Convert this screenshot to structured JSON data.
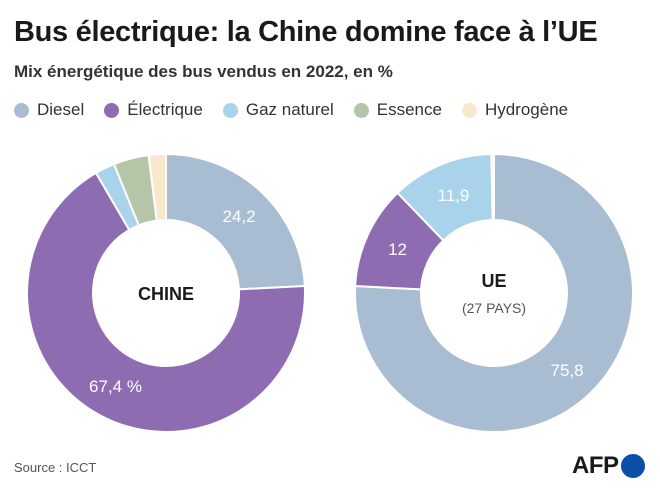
{
  "title": "Bus électrique: la Chine domine face à l’UE",
  "subtitle": "Mix énergétique des bus vendus en 2022, en %",
  "legend": [
    {
      "label": "Diesel",
      "color": "#a9bdd2"
    },
    {
      "label": "Électrique",
      "color": "#8e6cb2"
    },
    {
      "label": "Gaz naturel",
      "color": "#a8d3ea"
    },
    {
      "label": "Essence",
      "color": "#b5c6a8"
    },
    {
      "label": "Hydrogène",
      "color": "#f8e8cd"
    }
  ],
  "chart_data": [
    {
      "type": "pie",
      "name": "CHINE",
      "center_label": "CHINE",
      "center_sublabel": "",
      "categories": [
        "Diesel",
        "Électrique",
        "Gaz naturel",
        "Essence",
        "Hydrogène"
      ],
      "values": [
        24.2,
        67.4,
        2.3,
        4.1,
        2.0
      ],
      "labels": [
        "24,2",
        "67,4 %",
        "",
        "",
        ""
      ]
    },
    {
      "type": "pie",
      "name": "UE",
      "center_label": "UE",
      "center_sublabel": "(27 PAYS)",
      "categories": [
        "Diesel",
        "Électrique",
        "Gaz naturel",
        "Essence",
        "Hydrogène"
      ],
      "values": [
        75.8,
        12,
        11.9,
        0,
        0.3
      ],
      "labels": [
        "75,8",
        "12",
        "11,9",
        "",
        ""
      ]
    }
  ],
  "source": "Source : ICCT",
  "logo": "AFP"
}
